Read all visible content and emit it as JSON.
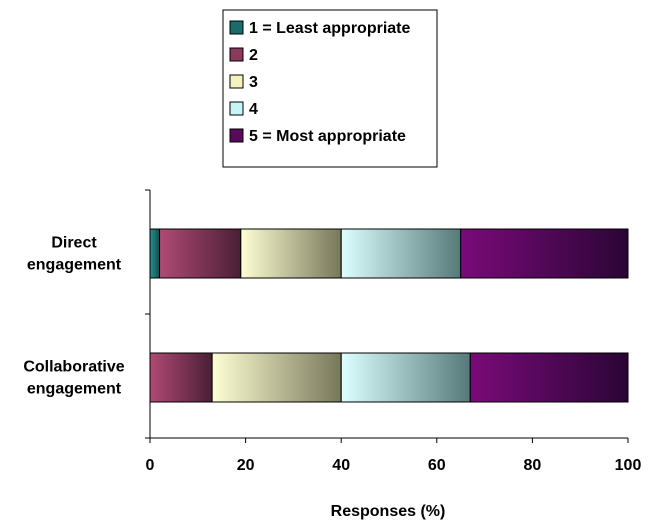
{
  "chart_data": {
    "type": "bar",
    "orientation": "horizontal",
    "stacked": true,
    "title": "",
    "xlabel": "Responses (%)",
    "ylabel": "",
    "xlim": [
      0,
      100
    ],
    "x_ticks": [
      "0",
      "20",
      "40",
      "60",
      "80",
      "100"
    ],
    "grid": false,
    "legend_placement": "top",
    "categories": [
      [
        "Direct",
        "engagement"
      ],
      [
        "Collaborative",
        "engagement"
      ]
    ],
    "series": [
      {
        "name": "1 = Least appropriate",
        "values": [
          2,
          0
        ],
        "color_light": "#2d8f8f",
        "color_dark": "#0f4f4f",
        "legend_color": "#1a6b6b"
      },
      {
        "name": "2",
        "values": [
          17,
          13
        ],
        "color_light": "#b04a75",
        "color_dark": "#4a1f35",
        "legend_color": "#8a3a5c"
      },
      {
        "name": "3",
        "values": [
          21,
          27
        ],
        "color_light": "#ffffd4",
        "color_dark": "#77775a",
        "legend_color": "#f5f2c0"
      },
      {
        "name": "4",
        "values": [
          25,
          27
        ],
        "color_light": "#dcffff",
        "color_dark": "#567a7a",
        "legend_color": "#c7f4f4"
      },
      {
        "name": "5 = Most appropriate",
        "values": [
          35,
          33
        ],
        "color_light": "#7a0a7a",
        "color_dark": "#2a0535",
        "legend_color": "#5a0a5a"
      }
    ]
  }
}
